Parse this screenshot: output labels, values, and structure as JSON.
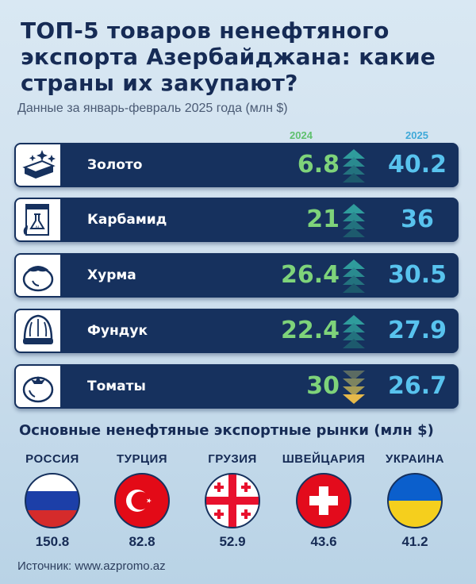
{
  "title": "ТОП-5 товаров ненефтяного экспорта Азербайджана: какие страны их закупают?",
  "subtitle": "Данные за январь-февраль 2025 года (млн $)",
  "years": {
    "y1": "2024",
    "y2": "2025"
  },
  "colors": {
    "row_bg": "#16315e",
    "val_2024": "#7ed37a",
    "val_2025": "#58c3ee",
    "arrow_up": "#2f9c9c",
    "arrow_down": "#e6b94a"
  },
  "products": [
    {
      "name": "Золото",
      "v2024": "6.8",
      "v2025": "40.2",
      "trend": "up",
      "icon": "gold-bars-icon"
    },
    {
      "name": "Карбамид",
      "v2024": "21",
      "v2025": "36",
      "trend": "up",
      "icon": "fertilizer-icon"
    },
    {
      "name": "Хурма",
      "v2024": "26.4",
      "v2025": "30.5",
      "trend": "up",
      "icon": "persimmon-icon"
    },
    {
      "name": "Фундук",
      "v2024": "22.4",
      "v2025": "27.9",
      "trend": "up",
      "icon": "hazelnut-icon"
    },
    {
      "name": "Томаты",
      "v2024": "30",
      "v2025": "26.7",
      "trend": "down",
      "icon": "tomato-icon"
    }
  ],
  "markets_title": "Основные ненефтяные экспортные рынки (млн $)",
  "countries": [
    {
      "name": "РОССИЯ",
      "value": "150.8",
      "flag": "russia-flag-icon"
    },
    {
      "name": "ТУРЦИЯ",
      "value": "82.8",
      "flag": "turkey-flag-icon"
    },
    {
      "name": "ГРУЗИЯ",
      "value": "52.9",
      "flag": "georgia-flag-icon"
    },
    {
      "name": "ШВЕЙЦАРИЯ",
      "value": "43.6",
      "flag": "switzerland-flag-icon"
    },
    {
      "name": "УКРАИНА",
      "value": "41.2",
      "flag": "ukraine-flag-icon"
    }
  ],
  "source": "Источник: www.azpromo.az"
}
